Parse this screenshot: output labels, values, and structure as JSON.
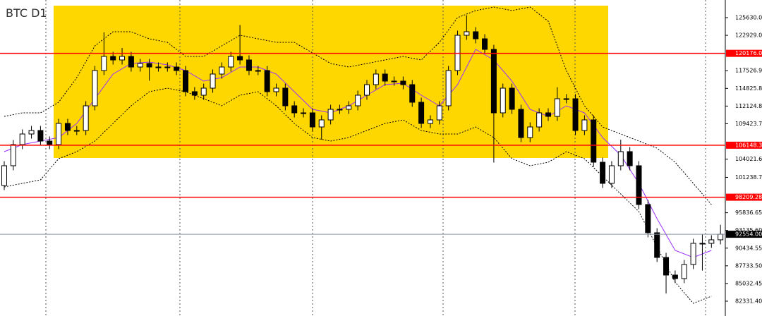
{
  "chart_data": {
    "type": "candlestick",
    "title": "BTC D1",
    "ylim": [
      80069,
      128323
    ],
    "yticks": [
      125630.05,
      122929.05,
      {
        "value": 117526.9,
        "label": "117526.90"
      },
      114825.85,
      {
        "value": 112124.8,
        "label": "112124.80"
      },
      109423.75,
      104021.65,
      101238.75,
      95836.65,
      {
        "value": 93135.6,
        "label": "93135.60"
      },
      90434.55,
      {
        "value": 87733.5,
        "label": "87733.50"
      },
      85032.45,
      {
        "value": 82331.4,
        "label": "82331.40"
      }
    ],
    "levels": [
      120176.06,
      106148.38,
      98209.28
    ],
    "level_color": "#ff0000",
    "current_price": {
      "value": 92554,
      "label": "92554.00"
    },
    "bull_color": "#ffffff",
    "bear_color": "#000000",
    "open": [
      100000,
      103013,
      106244,
      107860,
      108398,
      106783,
      106244,
      109476,
      108398,
      108398,
      112168,
      117553,
      119707,
      119169,
      119707,
      118092,
      118630,
      118092,
      118092,
      118092,
      117553,
      114322,
      113784,
      114861,
      117015,
      118092,
      119707,
      119169,
      117553,
      117553,
      114322,
      114861,
      112168,
      111091,
      111091,
      108937,
      110014,
      111629,
      111629,
      112168,
      113784,
      115399,
      117015,
      115938,
      115938,
      115399,
      112707,
      109476,
      110014,
      112168,
      117553,
      122938,
      123477,
      122400,
      120784,
      111091,
      114861,
      111629,
      107322,
      108937,
      111091,
      110553,
      113245,
      113245,
      108398,
      110014,
      103552,
      100321,
      103013,
      105169,
      103013,
      97090,
      92782,
      89013,
      86320,
      85782,
      87936,
      91167,
      91167,
      91706
    ],
    "high": [
      103713,
      106944,
      108560,
      109098,
      109098,
      107483,
      110176,
      110176,
      109098,
      112868,
      118253,
      123400,
      120407,
      121000,
      120407,
      119330,
      119330,
      118792,
      118792,
      118792,
      118253,
      115022,
      115561,
      117715,
      118792,
      120407,
      124500,
      119869,
      118253,
      118253,
      115561,
      115561,
      112868,
      111791,
      111791,
      110714,
      112329,
      112329,
      112868,
      114484,
      116099,
      117715,
      117715,
      116638,
      116638,
      116099,
      113407,
      110714,
      112868,
      118253,
      123638,
      126000,
      124177,
      123100,
      121484,
      115561,
      115561,
      112329,
      109637,
      111791,
      111791,
      115000,
      113945,
      113945,
      110714,
      110714,
      104252,
      103713,
      107000,
      105869,
      103713,
      97790,
      93482,
      89713,
      87020,
      88636,
      91867,
      92500,
      92406,
      94000
    ],
    "low": [
      99300,
      102313,
      105544,
      107160,
      106083,
      105544,
      105544,
      107698,
      107698,
      107698,
      111468,
      116853,
      118469,
      118469,
      117392,
      117392,
      116000,
      117392,
      117392,
      116853,
      113622,
      113084,
      113084,
      114161,
      116315,
      117392,
      118469,
      116853,
      116853,
      113622,
      113622,
      111468,
      110391,
      110391,
      108237,
      107000,
      109314,
      110929,
      110929,
      111468,
      113084,
      114699,
      115238,
      115238,
      114699,
      112007,
      108776,
      108776,
      109314,
      111468,
      116853,
      122238,
      121700,
      120084,
      103500,
      110391,
      110929,
      106622,
      106622,
      108237,
      109853,
      109853,
      112545,
      107698,
      107698,
      102852,
      99621,
      99621,
      102313,
      102313,
      96390,
      92082,
      88313,
      83500,
      85082,
      85082,
      87236,
      87000,
      90467,
      91006
    ],
    "close": [
      103013,
      106244,
      107860,
      108398,
      106783,
      106244,
      109476,
      108398,
      108398,
      112168,
      117553,
      119707,
      119169,
      119707,
      118092,
      118630,
      118092,
      118092,
      118092,
      117553,
      114322,
      113784,
      114861,
      117015,
      118092,
      119707,
      119169,
      117553,
      117553,
      114322,
      114861,
      112168,
      111091,
      111091,
      108937,
      110014,
      111629,
      111629,
      112168,
      113784,
      115399,
      117015,
      115938,
      115938,
      115399,
      112707,
      109476,
      110014,
      112168,
      117553,
      122938,
      123477,
      122400,
      120784,
      111091,
      114861,
      111629,
      107322,
      108937,
      111091,
      110553,
      113245,
      113245,
      108398,
      110014,
      103552,
      100321,
      103013,
      105169,
      103013,
      97090,
      92782,
      89013,
      86320,
      85782,
      87936,
      91167,
      91167,
      91706,
      92554
    ],
    "band_x": [
      0,
      2,
      4,
      6,
      8,
      10,
      12,
      14,
      16,
      18,
      20,
      22,
      24,
      26,
      28,
      30,
      32,
      34,
      36,
      38,
      40,
      42,
      44,
      46,
      48,
      50,
      52,
      54,
      56,
      58,
      60,
      62,
      64,
      66,
      68,
      70,
      72,
      74,
      76,
      78
    ],
    "upper_band": [
      110552,
      111091,
      111091,
      112706,
      116476,
      121322,
      123476,
      123476,
      122399,
      121861,
      119707,
      119707,
      121322,
      122938,
      122399,
      121861,
      121861,
      120245,
      118630,
      118091,
      118630,
      119168,
      119707,
      119168,
      121861,
      125630,
      126707,
      127246,
      126707,
      127246,
      125092,
      117553,
      112168,
      108937,
      107860,
      106783,
      105706,
      103552,
      100321,
      97090
    ],
    "lower_band": [
      99782,
      100321,
      100859,
      104090,
      105167,
      106783,
      109475,
      112168,
      114322,
      114860,
      114322,
      113245,
      112168,
      113783,
      114322,
      112168,
      109475,
      107321,
      106783,
      107321,
      108398,
      109475,
      110014,
      108398,
      107860,
      107860,
      108937,
      107321,
      104090,
      103013,
      103552,
      105167,
      104090,
      101398,
      98705,
      96013,
      90628,
      85243,
      82012,
      83089
    ],
    "ma": [
      105167,
      106244,
      106783,
      107321,
      109475,
      113245,
      117014,
      118630,
      118845,
      118415,
      117553,
      115937,
      116476,
      118091,
      118091,
      117014,
      114322,
      111629,
      111091,
      112168,
      113783,
      115399,
      115614,
      113783,
      112168,
      115399,
      120784,
      119168,
      115937,
      111629,
      110552,
      112168,
      111091,
      107321,
      104629,
      100321,
      94936,
      90089,
      89012,
      90089
    ],
    "band_color": "#000000",
    "ma_color": "#9b30ff"
  }
}
